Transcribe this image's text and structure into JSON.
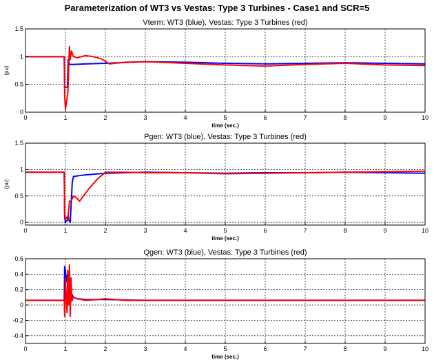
{
  "figure": {
    "title": "Parameterization of WT3 vs Vestas: Type 3 Turbines - Case1 and SCR=5",
    "series_colors": {
      "WT3": "#0000ff",
      "Vestas": "#ff0000"
    }
  },
  "chart_data": [
    {
      "type": "line",
      "title": "Vterm: WT3 (blue), Vestas: Type 3 Turbines (red)",
      "xlabel": "time (sec.)",
      "ylabel": "(pu)",
      "xlim": [
        0,
        10
      ],
      "ylim": [
        0,
        1.5
      ],
      "xticks": [
        0,
        1,
        2,
        3,
        4,
        5,
        6,
        7,
        8,
        9,
        10
      ],
      "yticks": [
        0,
        0.5,
        1,
        1.5
      ],
      "ytick_labels": [
        "0",
        "0.5",
        "1",
        "1.5"
      ],
      "grid": true,
      "series": [
        {
          "color": "#0000ff",
          "x": [
            0,
            0.97,
            0.98,
            1.0,
            1.05,
            1.07,
            1.08,
            1.1,
            1.13,
            1.2,
            1.5,
            2,
            3,
            4,
            5,
            6,
            7,
            8,
            9,
            10
          ],
          "y": [
            1.0,
            1.0,
            0.45,
            0.45,
            0.45,
            0.95,
            0.95,
            0.86,
            0.86,
            0.86,
            0.87,
            0.88,
            0.91,
            0.9,
            0.88,
            0.87,
            0.88,
            0.89,
            0.88,
            0.87
          ]
        },
        {
          "color": "#ff0000",
          "x": [
            0,
            0.97,
            0.98,
            1.0,
            1.03,
            1.06,
            1.08,
            1.1,
            1.12,
            1.15,
            1.2,
            1.3,
            1.5,
            1.7,
            1.9,
            2.1,
            2.5,
            3,
            4,
            5,
            6,
            7,
            8,
            9,
            10
          ],
          "y": [
            1.0,
            1.0,
            0.3,
            0.05,
            0.2,
            0.35,
            0.75,
            1.18,
            0.95,
            1.1,
            1.0,
            0.98,
            1.02,
            1.0,
            0.96,
            0.87,
            0.9,
            0.91,
            0.88,
            0.85,
            0.83,
            0.86,
            0.88,
            0.85,
            0.84
          ]
        }
      ]
    },
    {
      "type": "line",
      "title": "Pgen: WT3 (blue), Vestas: Type 3 Turbines (red)",
      "xlabel": "time (sec.)",
      "ylabel": "(pu)",
      "xlim": [
        0,
        10
      ],
      "ylim": [
        -0.05,
        1.5
      ],
      "xticks": [
        0,
        1,
        2,
        3,
        4,
        5,
        6,
        7,
        8,
        9,
        10
      ],
      "yticks": [
        0,
        0.5,
        1,
        1.5
      ],
      "ytick_labels": [
        "0",
        "0.5",
        "1",
        "1.5"
      ],
      "grid": true,
      "series": [
        {
          "color": "#0000ff",
          "x": [
            0,
            0.97,
            0.98,
            1.0,
            1.05,
            1.07,
            1.08,
            1.12,
            1.17,
            1.2,
            1.5,
            2,
            3,
            4,
            5,
            6,
            7,
            8,
            9,
            10
          ],
          "y": [
            0.95,
            0.95,
            0.1,
            0.0,
            0.05,
            0.15,
            0.05,
            0.0,
            0.75,
            0.87,
            0.9,
            0.93,
            0.95,
            0.94,
            0.93,
            0.94,
            0.94,
            0.95,
            0.94,
            0.93
          ]
        },
        {
          "color": "#ff0000",
          "x": [
            0,
            0.97,
            0.98,
            1.0,
            1.03,
            1.06,
            1.1,
            1.15,
            1.2,
            1.3,
            1.35,
            1.4,
            1.5,
            1.6,
            1.8,
            2.0,
            2.5,
            3,
            4,
            5,
            6,
            7,
            8,
            9,
            10
          ],
          "y": [
            0.95,
            0.95,
            0.2,
            0.05,
            0.1,
            0.05,
            0.4,
            0.42,
            0.5,
            0.45,
            0.4,
            0.45,
            0.55,
            0.65,
            0.82,
            0.95,
            0.95,
            0.94,
            0.94,
            0.92,
            0.93,
            0.94,
            0.95,
            0.96,
            0.97
          ]
        }
      ]
    },
    {
      "type": "line",
      "title": "Qgen: WT3 (blue), Vestas: Type 3 Turbines (red)",
      "xlabel": "time (sec.)",
      "ylabel": "",
      "xlim": [
        0,
        10
      ],
      "ylim": [
        -0.5,
        0.6
      ],
      "xticks": [
        0,
        1,
        2,
        3,
        4,
        5,
        6,
        7,
        8,
        9,
        10
      ],
      "yticks": [
        -0.4,
        -0.2,
        0,
        0.2,
        0.4,
        0.6
      ],
      "ytick_labels": [
        "-0.4",
        "-0.2",
        "0",
        "0.2",
        "0.4",
        "0.6"
      ],
      "grid": true,
      "series": [
        {
          "color": "#0000ff",
          "x": [
            0,
            0.97,
            0.98,
            1.0,
            1.02,
            1.05,
            1.08,
            1.1,
            1.12,
            1.15,
            1.2,
            1.3,
            1.5,
            2,
            3,
            4,
            5,
            6,
            7,
            8,
            9,
            10
          ],
          "y": [
            0.06,
            0.06,
            0.5,
            0.45,
            0.3,
            0.4,
            0.35,
            0.2,
            0.05,
            0.15,
            0.1,
            0.08,
            0.07,
            0.07,
            0.06,
            0.06,
            0.06,
            0.06,
            0.06,
            0.06,
            0.06,
            0.06
          ]
        },
        {
          "color": "#ff0000",
          "x": [
            0,
            0.97,
            0.98,
            1.0,
            1.02,
            1.04,
            1.06,
            1.08,
            1.1,
            1.12,
            1.14,
            1.16,
            1.2,
            1.3,
            1.5,
            1.8,
            2,
            2.5,
            3,
            4,
            5,
            6,
            7,
            8,
            9,
            10
          ],
          "y": [
            0.06,
            0.06,
            -0.15,
            0.35,
            0.1,
            -0.1,
            0.45,
            0.0,
            0.52,
            -0.15,
            0.35,
            0.05,
            0.1,
            0.08,
            0.06,
            0.07,
            0.08,
            0.06,
            0.06,
            0.06,
            0.06,
            0.06,
            0.06,
            0.06,
            0.06,
            0.06
          ]
        }
      ]
    }
  ]
}
